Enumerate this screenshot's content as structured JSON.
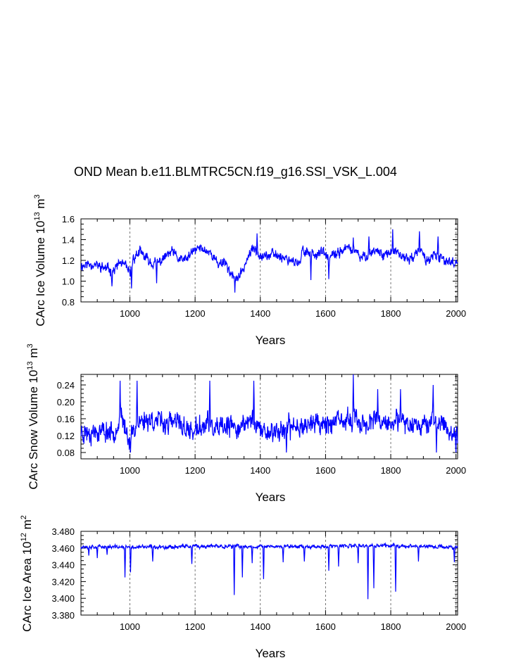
{
  "title": "OND Mean b.e11.BLMTRC5CN.f19_g16.SSI_VSK_L.004",
  "chart_data": [
    {
      "type": "line",
      "id": "ice-volume",
      "ylabel_main": "CArc Ice Volume 10",
      "ylabel_exp": "13",
      "ylabel_unit": " m",
      "ylabel_unit_exp": "3",
      "xlabel": "Years",
      "xlim": [
        850,
        2005
      ],
      "ylim": [
        0.8,
        1.6
      ],
      "xticks": [
        1000,
        1200,
        1400,
        1600,
        1800,
        2000
      ],
      "xtick_labels": [
        "1000",
        "1200",
        "1400",
        "1600",
        "1800",
        "2000"
      ],
      "yticks": [
        0.8,
        1.0,
        1.2,
        1.4,
        1.6
      ],
      "ytick_labels": [
        "0.8",
        "1.0",
        "1.2",
        "1.4",
        "1.6"
      ],
      "vgrid": [
        1000,
        1200,
        1400,
        1600,
        1800,
        2000
      ],
      "color": "#0000ff",
      "series_name": "CArc Ice Volume",
      "profile": [
        [
          850,
          1.15
        ],
        [
          880,
          1.17
        ],
        [
          900,
          1.15
        ],
        [
          930,
          1.12
        ],
        [
          950,
          1.1
        ],
        [
          970,
          1.18
        ],
        [
          990,
          1.13
        ],
        [
          1000,
          1.06
        ],
        [
          1010,
          1.22
        ],
        [
          1030,
          1.28
        ],
        [
          1050,
          1.22
        ],
        [
          1070,
          1.17
        ],
        [
          1090,
          1.18
        ],
        [
          1110,
          1.24
        ],
        [
          1130,
          1.28
        ],
        [
          1150,
          1.21
        ],
        [
          1170,
          1.2
        ],
        [
          1190,
          1.27
        ],
        [
          1210,
          1.32
        ],
        [
          1230,
          1.3
        ],
        [
          1250,
          1.27
        ],
        [
          1270,
          1.16
        ],
        [
          1290,
          1.2
        ],
        [
          1305,
          1.1
        ],
        [
          1320,
          1.02
        ],
        [
          1340,
          1.06
        ],
        [
          1360,
          1.22
        ],
        [
          1380,
          1.32
        ],
        [
          1400,
          1.26
        ],
        [
          1420,
          1.24
        ],
        [
          1440,
          1.26
        ],
        [
          1460,
          1.24
        ],
        [
          1480,
          1.22
        ],
        [
          1500,
          1.2
        ],
        [
          1520,
          1.15
        ],
        [
          1530,
          1.3
        ],
        [
          1550,
          1.28
        ],
        [
          1570,
          1.26
        ],
        [
          1590,
          1.28
        ],
        [
          1610,
          1.22
        ],
        [
          1630,
          1.25
        ],
        [
          1650,
          1.3
        ],
        [
          1670,
          1.32
        ],
        [
          1690,
          1.28
        ],
        [
          1710,
          1.22
        ],
        [
          1730,
          1.26
        ],
        [
          1750,
          1.3
        ],
        [
          1770,
          1.27
        ],
        [
          1790,
          1.26
        ],
        [
          1810,
          1.28
        ],
        [
          1830,
          1.24
        ],
        [
          1850,
          1.22
        ],
        [
          1870,
          1.23
        ],
        [
          1890,
          1.3
        ],
        [
          1910,
          1.2
        ],
        [
          1930,
          1.24
        ],
        [
          1950,
          1.22
        ],
        [
          1970,
          1.2
        ],
        [
          1990,
          1.18
        ],
        [
          2005,
          1.19
        ]
      ],
      "noise": 0.065,
      "seed": 11,
      "spikes": [
        [
          945,
          0.95
        ],
        [
          1005,
          0.93
        ],
        [
          1082,
          0.98
        ],
        [
          1322,
          0.89
        ],
        [
          1390,
          1.46
        ],
        [
          1685,
          1.42
        ],
        [
          1733,
          1.43
        ],
        [
          1806,
          1.5
        ],
        [
          1888,
          1.48
        ],
        [
          1945,
          1.43
        ],
        [
          1555,
          1.01
        ],
        [
          1610,
          1.02
        ]
      ]
    },
    {
      "type": "line",
      "id": "snow-volume",
      "ylabel_main": "CArc Snow Volume 10",
      "ylabel_exp": "13",
      "ylabel_unit": " m",
      "ylabel_unit_exp": "3",
      "xlabel": "Years",
      "xlim": [
        850,
        2005
      ],
      "ylim": [
        0.065,
        0.265
      ],
      "xticks": [
        1000,
        1200,
        1400,
        1600,
        1800,
        2000
      ],
      "xtick_labels": [
        "1000",
        "1200",
        "1400",
        "1600",
        "1800",
        "2000"
      ],
      "yticks": [
        0.08,
        0.12,
        0.16,
        0.2,
        0.24
      ],
      "ytick_labels": [
        "0.08",
        "0.12",
        "0.16",
        "0.20",
        "0.24"
      ],
      "vgrid": [
        1000,
        1200,
        1400,
        1600,
        1800,
        2000
      ],
      "color": "#0000ff",
      "series_name": "CArc Snow Volume",
      "profile": [
        [
          850,
          0.13
        ],
        [
          900,
          0.13
        ],
        [
          950,
          0.13
        ],
        [
          975,
          0.16
        ],
        [
          1000,
          0.11
        ],
        [
          1020,
          0.15
        ],
        [
          1060,
          0.16
        ],
        [
          1100,
          0.15
        ],
        [
          1150,
          0.15
        ],
        [
          1180,
          0.13
        ],
        [
          1200,
          0.13
        ],
        [
          1240,
          0.15
        ],
        [
          1260,
          0.13
        ],
        [
          1300,
          0.14
        ],
        [
          1340,
          0.14
        ],
        [
          1380,
          0.16
        ],
        [
          1400,
          0.13
        ],
        [
          1450,
          0.13
        ],
        [
          1500,
          0.14
        ],
        [
          1550,
          0.15
        ],
        [
          1600,
          0.15
        ],
        [
          1650,
          0.15
        ],
        [
          1680,
          0.16
        ],
        [
          1700,
          0.15
        ],
        [
          1750,
          0.15
        ],
        [
          1800,
          0.15
        ],
        [
          1850,
          0.15
        ],
        [
          1900,
          0.15
        ],
        [
          1950,
          0.15
        ],
        [
          2005,
          0.12
        ]
      ],
      "noise": 0.033,
      "seed": 23,
      "spikes": [
        [
          970,
          0.25
        ],
        [
          1022,
          0.25
        ],
        [
          1245,
          0.25
        ],
        [
          1380,
          0.25
        ],
        [
          1685,
          0.27
        ],
        [
          1930,
          0.24
        ],
        [
          1002,
          0.08
        ],
        [
          1480,
          0.08
        ],
        [
          1940,
          0.08
        ],
        [
          2000,
          0.08
        ],
        [
          1830,
          0.23
        ],
        [
          1760,
          0.23
        ]
      ]
    },
    {
      "type": "line",
      "id": "ice-area",
      "ylabel_main": "CArc Ice Area 10",
      "ylabel_exp": "12",
      "ylabel_unit": " m",
      "ylabel_unit_exp": "2",
      "xlabel": "Years",
      "xlim": [
        850,
        2005
      ],
      "ylim": [
        3.38,
        3.48
      ],
      "xticks": [
        1000,
        1200,
        1400,
        1600,
        1800,
        2000
      ],
      "xtick_labels": [
        "1000",
        "1200",
        "1400",
        "1600",
        "1800",
        "2000"
      ],
      "yticks": [
        3.38,
        3.4,
        3.42,
        3.44,
        3.46,
        3.48
      ],
      "ytick_labels": [
        "3.380",
        "3.400",
        "3.420",
        "3.440",
        "3.460",
        "3.480"
      ],
      "vgrid": [
        1000,
        1200,
        1400,
        1600,
        1800,
        2000
      ],
      "color": "#0000ff",
      "series_name": "CArc Ice Area",
      "profile": [
        [
          850,
          3.462
        ],
        [
          1000,
          3.461
        ],
        [
          1200,
          3.462
        ],
        [
          1400,
          3.462
        ],
        [
          1600,
          3.462
        ],
        [
          1800,
          3.463
        ],
        [
          2005,
          3.461
        ]
      ],
      "noise": 0.003,
      "seed": 37,
      "spikes": [
        [
          874,
          3.451
        ],
        [
          900,
          3.448
        ],
        [
          930,
          3.452
        ],
        [
          985,
          3.425
        ],
        [
          1002,
          3.431
        ],
        [
          1070,
          3.444
        ],
        [
          1190,
          3.441
        ],
        [
          1320,
          3.404
        ],
        [
          1345,
          3.425
        ],
        [
          1375,
          3.442
        ],
        [
          1410,
          3.423
        ],
        [
          1470,
          3.443
        ],
        [
          1535,
          3.444
        ],
        [
          1610,
          3.433
        ],
        [
          1640,
          3.438
        ],
        [
          1700,
          3.442
        ],
        [
          1730,
          3.399
        ],
        [
          1748,
          3.412
        ],
        [
          1815,
          3.408
        ],
        [
          1885,
          3.444
        ],
        [
          1995,
          3.443
        ]
      ]
    }
  ]
}
